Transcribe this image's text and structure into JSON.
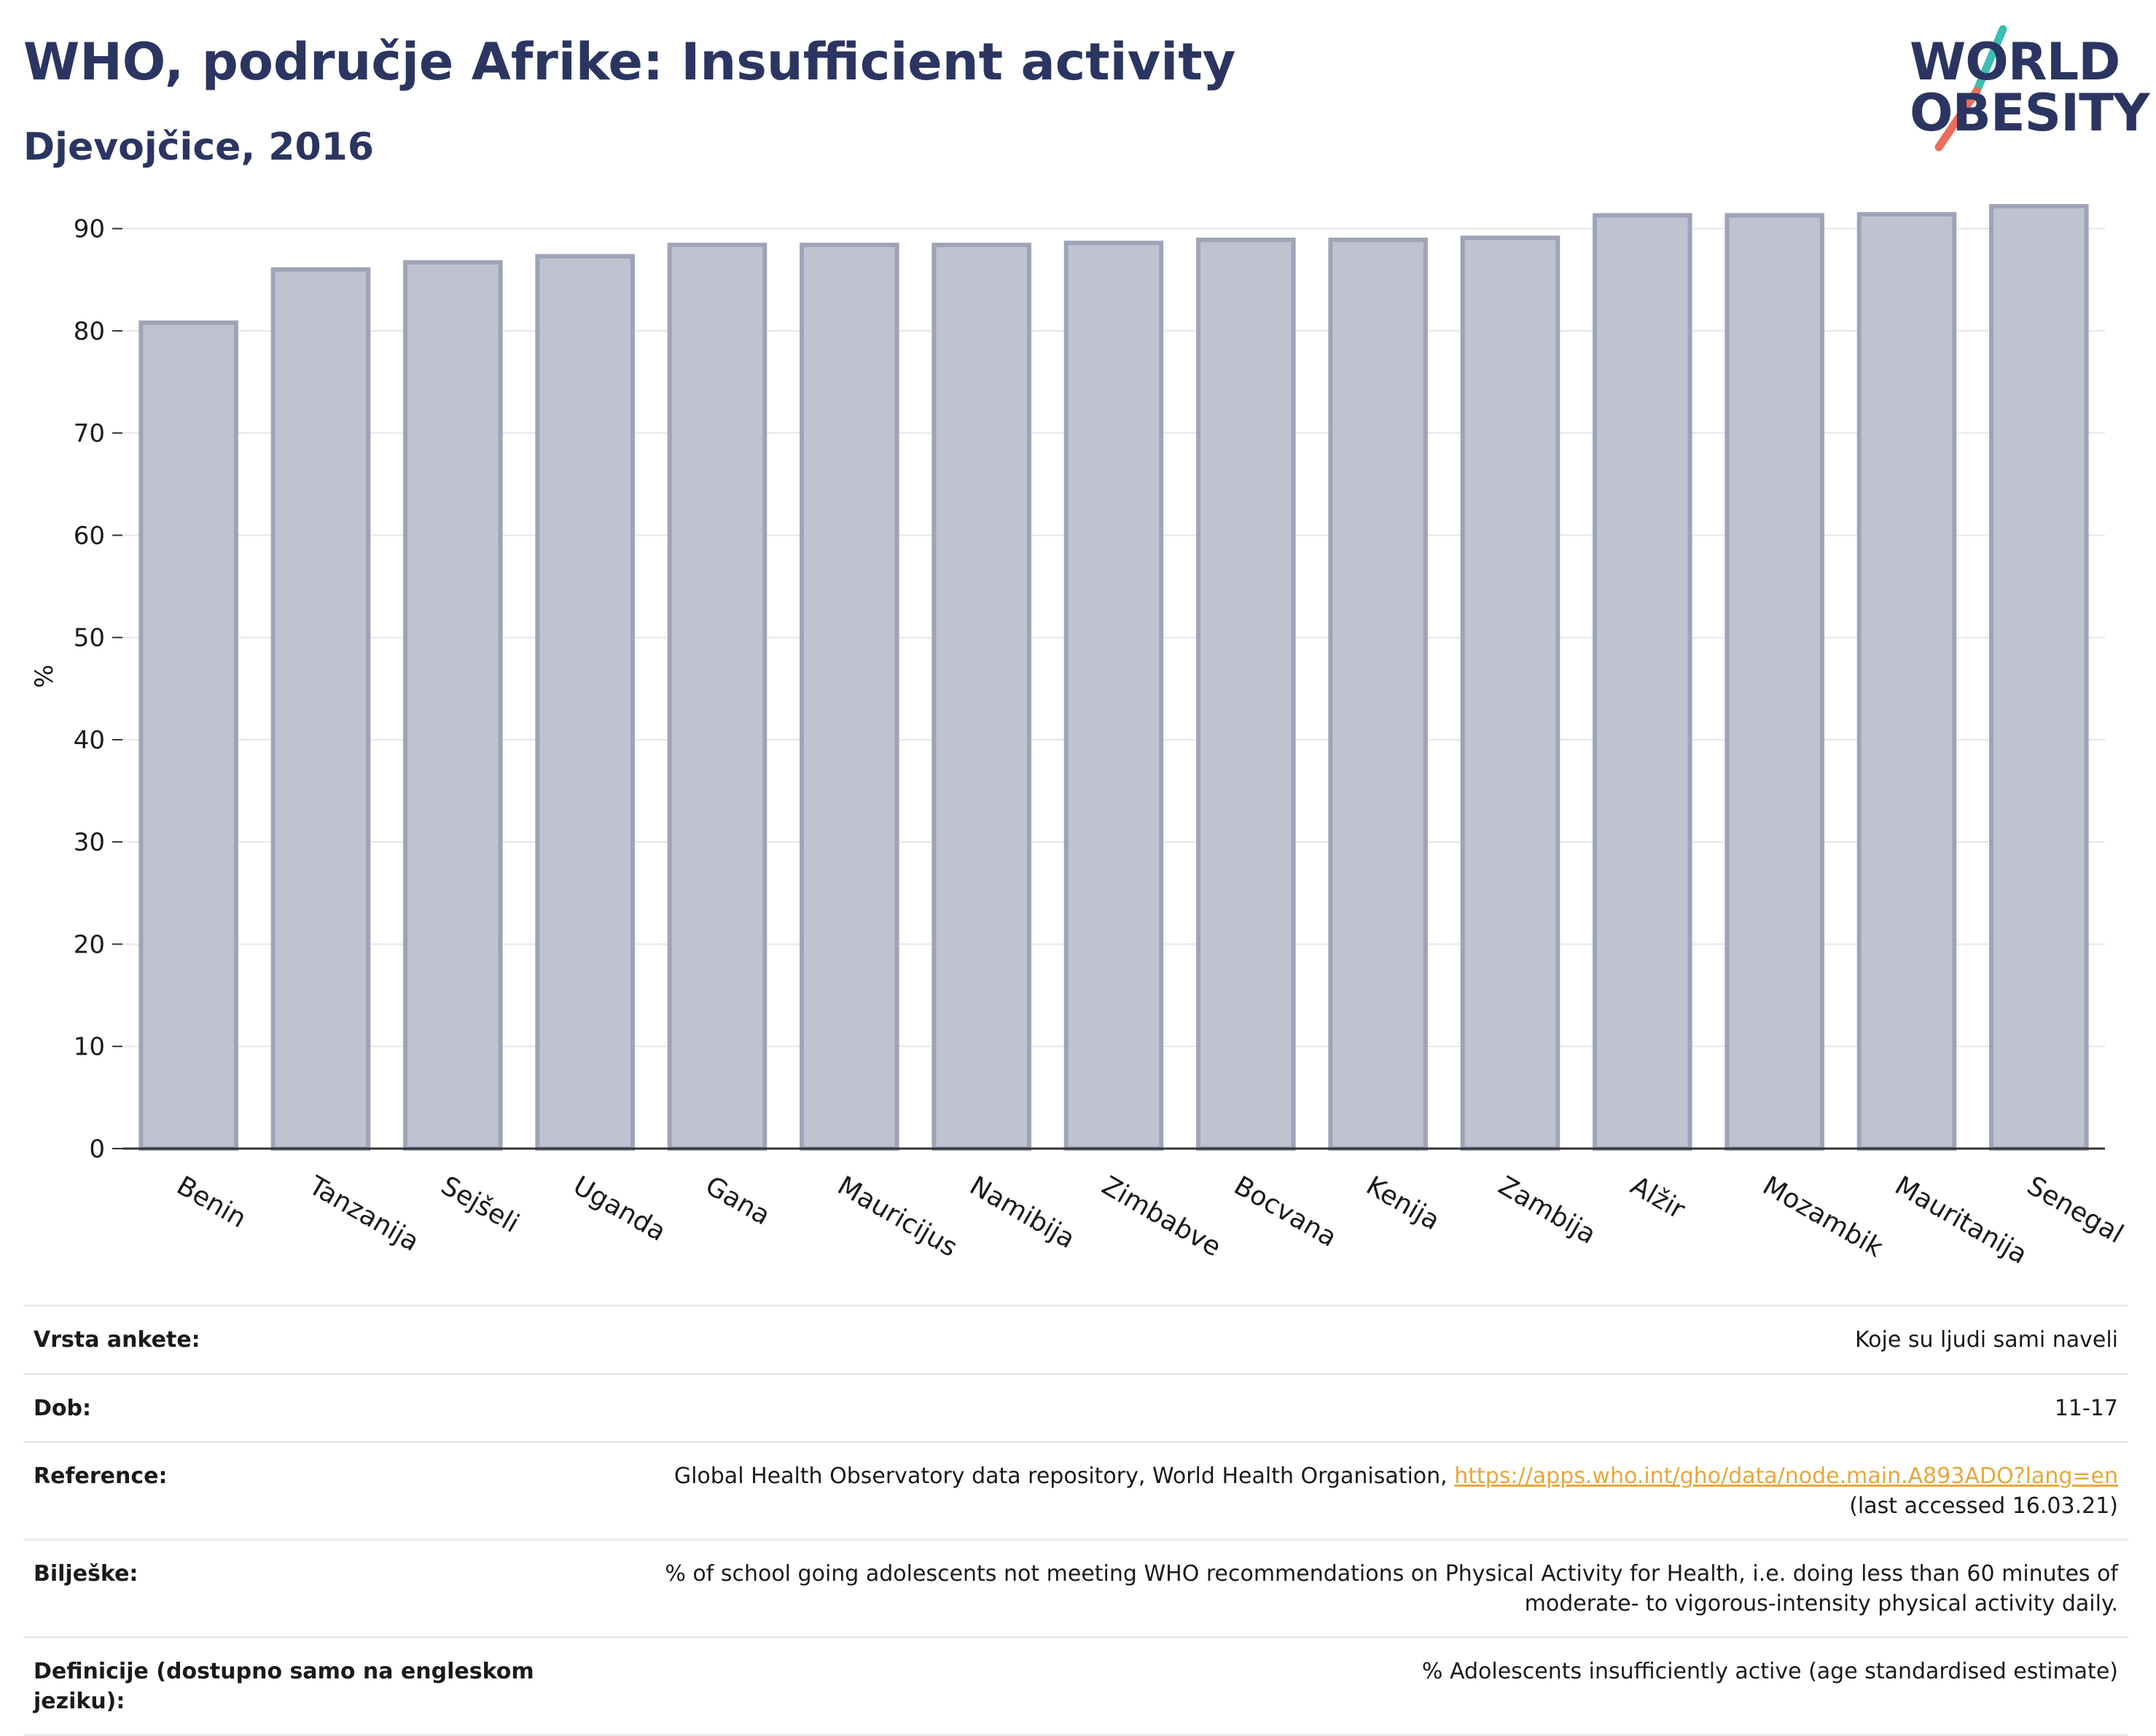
{
  "header": {
    "title": "WHO, područje Afrike: Insufficient activity",
    "subtitle": "Djevojčice, 2016"
  },
  "logo": {
    "line1": "WORLD",
    "line2": "OBESITY",
    "colors": {
      "text": "#2b3561",
      "slash_top": "#3bbfb4",
      "slash_bottom": "#ea6e5c"
    }
  },
  "chart_data": {
    "type": "bar",
    "ylabel": "%",
    "xlabel": "",
    "ylim": [
      0,
      92.4
    ],
    "yticks": [
      0,
      10,
      20,
      30,
      40,
      50,
      60,
      70,
      80,
      90
    ],
    "grid": true,
    "legend": "none",
    "categories": [
      "Benin",
      "Tanzanija",
      "Sejšeli",
      "Uganda",
      "Gana",
      "Mauricijus",
      "Namibija",
      "Zimbabve",
      "Bocvana",
      "Kenija",
      "Zambija",
      "Alžir",
      "Mozambik",
      "Mauritanija",
      "Senegal"
    ],
    "values": [
      80.8,
      86.0,
      86.7,
      87.3,
      88.4,
      88.4,
      88.4,
      88.6,
      88.9,
      88.9,
      89.1,
      91.3,
      91.3,
      91.4,
      92.2
    ],
    "bar_color": "#bfc2cf",
    "bar_edge_color": "#9ea3b8"
  },
  "info": {
    "rows": [
      {
        "label": "Vrsta ankete:",
        "value": "Koje su ljudi sami naveli"
      },
      {
        "label": "Dob:",
        "value": "11-17"
      },
      {
        "label": "Reference:",
        "value": "Global Health Observatory data repository, World Health Organisation,",
        "link": "https://apps.who.int/gho/data/node.main.A893ADO?lang=en",
        "extra": "(last accessed 16.03.21)"
      },
      {
        "label": "Bilješke:",
        "value": "% of school going adolescents not meeting WHO recommendations on Physical Activity for Health, i.e. doing less than 60 minutes of",
        "extra": "moderate- to vigorous-intensity physical activity daily."
      },
      {
        "label": "Definicije (dostupno samo na engleskom jeziku):",
        "value": "% Adolescents insufficiently active (age standardised estimate)"
      }
    ]
  }
}
